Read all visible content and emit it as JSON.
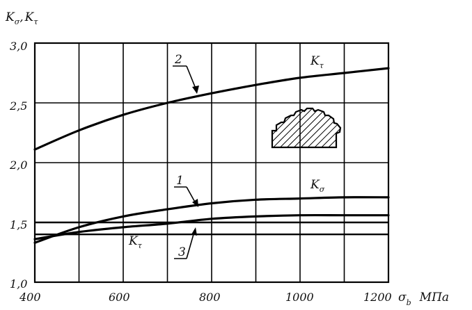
{
  "chart_data": {
    "type": "line",
    "title": "",
    "xlim": [
      400,
      1200
    ],
    "ylim": [
      1.0,
      3.0
    ],
    "x_ticks": [
      "400",
      "600",
      "800",
      "1000",
      "1200"
    ],
    "y_ticks": [
      "1,0",
      "1,5",
      "2,0",
      "2,5",
      "3,0"
    ],
    "grid": true,
    "xlabel": {
      "symbol": "σ",
      "subscript": "b",
      "unit": "МПа"
    },
    "ylabel": {
      "k1": "K",
      "k1_sub": "σ",
      "sep": ",",
      "k2": "K",
      "k2_sub": "τ"
    },
    "series": [
      {
        "name": "1",
        "label": "K",
        "label_sub": "σ",
        "x": [
          400,
          500,
          600,
          700,
          800,
          900,
          1000,
          1100,
          1200
        ],
        "y": [
          1.33,
          1.46,
          1.55,
          1.61,
          1.66,
          1.69,
          1.7,
          1.71,
          1.71
        ]
      },
      {
        "name": "2",
        "label": "K",
        "label_sub": "τ",
        "x": [
          400,
          500,
          600,
          700,
          800,
          900,
          1000,
          1100,
          1200
        ],
        "y": [
          2.11,
          2.27,
          2.4,
          2.5,
          2.58,
          2.65,
          2.71,
          2.75,
          2.79
        ]
      },
      {
        "name": "3",
        "label": "K",
        "label_sub": "τ",
        "x": [
          400,
          500,
          600,
          700,
          800,
          900,
          1000,
          1100,
          1200
        ],
        "y": [
          1.36,
          1.42,
          1.46,
          1.49,
          1.53,
          1.55,
          1.56,
          1.56,
          1.56
        ]
      }
    ],
    "reference_lines": [
      {
        "x": [
          400,
          1200
        ],
        "y": [
          1.4,
          1.4
        ]
      },
      {
        "x": [
          400,
          1200
        ],
        "y": [
          1.5,
          1.5
        ]
      }
    ]
  }
}
